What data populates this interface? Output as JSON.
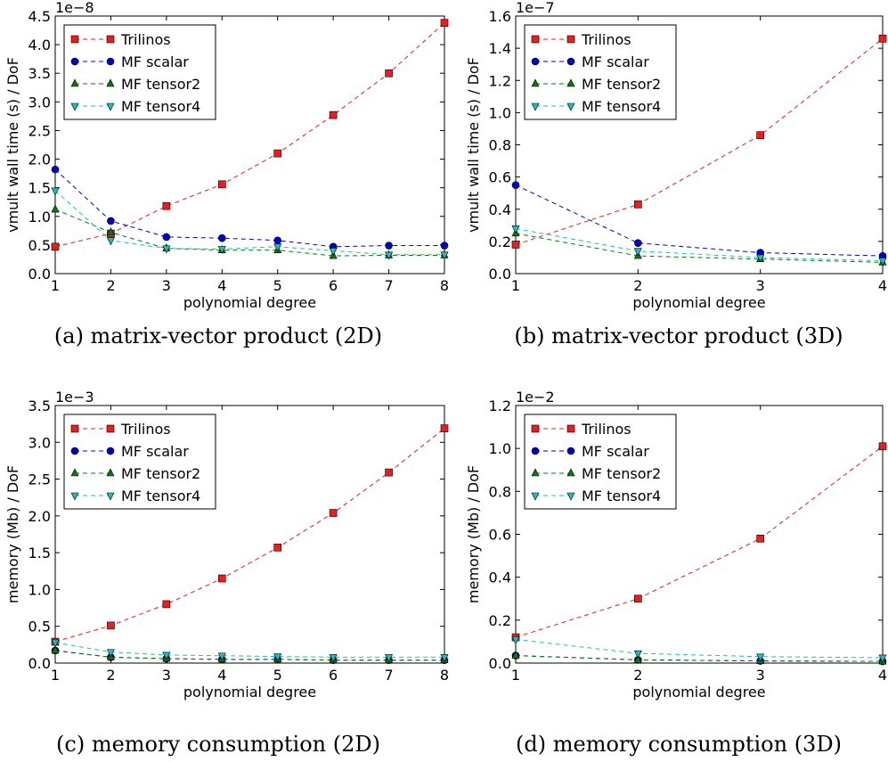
{
  "series_styles": [
    {
      "color": "#ee1c1c",
      "marker": "square"
    },
    {
      "color": "#0000cc",
      "marker": "circle"
    },
    {
      "color": "#0a7a0a",
      "marker": "triangle-up"
    },
    {
      "color": "#1bbfbf",
      "marker": "triangle-down"
    }
  ],
  "chart_data": [
    {
      "type": "line",
      "caption": "(a) matrix-vector product (2D)",
      "xlabel": "polynomial degree",
      "ylabel": "vmult wall time (s) / DoF",
      "offset_text": "1e−8",
      "xlim": [
        1,
        8
      ],
      "ylim": [
        0,
        4.5
      ],
      "xticks": [
        1,
        2,
        3,
        4,
        5,
        6,
        7,
        8
      ],
      "yticks": [
        0.0,
        0.5,
        1.0,
        1.5,
        2.0,
        2.5,
        3.0,
        3.5,
        4.0,
        4.5
      ],
      "legend": "top-left",
      "x": [
        1,
        2,
        3,
        4,
        5,
        6,
        7,
        8
      ],
      "series": [
        {
          "name": "Trilinos",
          "values": [
            0.47,
            0.7,
            1.18,
            1.56,
            2.1,
            2.77,
            3.5,
            4.38
          ]
        },
        {
          "name": "MF scalar",
          "values": [
            1.82,
            0.92,
            0.64,
            0.62,
            0.58,
            0.47,
            0.49,
            0.49
          ]
        },
        {
          "name": "MF tensor2",
          "values": [
            1.12,
            0.72,
            0.44,
            0.41,
            0.41,
            0.31,
            0.32,
            0.32
          ]
        },
        {
          "name": "MF tensor4",
          "values": [
            1.45,
            0.58,
            0.44,
            0.43,
            0.47,
            0.4,
            0.33,
            0.33
          ]
        }
      ]
    },
    {
      "type": "line",
      "caption": "(b) matrix-vector product (3D)",
      "xlabel": "polynomial degree",
      "ylabel": "vmult wall time (s) / DoF",
      "offset_text": "1e−7",
      "xlim": [
        1,
        4
      ],
      "ylim": [
        0,
        1.6
      ],
      "xticks": [
        1,
        2,
        3,
        4
      ],
      "yticks": [
        0.0,
        0.2,
        0.4,
        0.6,
        0.8,
        1.0,
        1.2,
        1.4,
        1.6
      ],
      "legend": "top-left",
      "x": [
        1,
        2,
        3,
        4
      ],
      "series": [
        {
          "name": "Trilinos",
          "values": [
            0.18,
            0.43,
            0.86,
            1.46
          ]
        },
        {
          "name": "MF scalar",
          "values": [
            0.55,
            0.19,
            0.13,
            0.11
          ]
        },
        {
          "name": "MF tensor2",
          "values": [
            0.25,
            0.11,
            0.09,
            0.07
          ]
        },
        {
          "name": "MF tensor4",
          "values": [
            0.28,
            0.14,
            0.1,
            0.08
          ]
        }
      ]
    },
    {
      "type": "line",
      "caption": "(c) memory consumption (2D)",
      "xlabel": "polynomial degree",
      "ylabel": "memory (Mb) / DoF",
      "offset_text": "1e−3",
      "xlim": [
        1,
        8
      ],
      "ylim": [
        0,
        3.5
      ],
      "xticks": [
        1,
        2,
        3,
        4,
        5,
        6,
        7,
        8
      ],
      "yticks": [
        0.0,
        0.5,
        1.0,
        1.5,
        2.0,
        2.5,
        3.0,
        3.5
      ],
      "legend": "top-left",
      "x": [
        1,
        2,
        3,
        4,
        5,
        6,
        7,
        8
      ],
      "series": [
        {
          "name": "Trilinos",
          "values": [
            0.29,
            0.51,
            0.8,
            1.15,
            1.57,
            2.04,
            2.59,
            3.19
          ]
        },
        {
          "name": "MF scalar",
          "values": [
            0.17,
            0.08,
            0.06,
            0.05,
            0.05,
            0.04,
            0.04,
            0.04
          ]
        },
        {
          "name": "MF tensor2",
          "values": [
            0.17,
            0.08,
            0.06,
            0.05,
            0.05,
            0.04,
            0.04,
            0.04
          ]
        },
        {
          "name": "MF tensor4",
          "values": [
            0.28,
            0.15,
            0.11,
            0.1,
            0.09,
            0.08,
            0.08,
            0.08
          ]
        }
      ]
    },
    {
      "type": "line",
      "caption": "(d) memory consumption (3D)",
      "xlabel": "polynomial degree",
      "ylabel": "memory (Mb) / DoF",
      "offset_text": "1e−2",
      "xlim": [
        1,
        4
      ],
      "ylim": [
        0,
        1.2
      ],
      "xticks": [
        1,
        2,
        3,
        4
      ],
      "yticks": [
        0.0,
        0.2,
        0.4,
        0.6,
        0.8,
        1.0,
        1.2
      ],
      "legend": "top-left",
      "x": [
        1,
        2,
        3,
        4
      ],
      "series": [
        {
          "name": "Trilinos",
          "values": [
            0.12,
            0.3,
            0.58,
            1.01
          ]
        },
        {
          "name": "MF scalar",
          "values": [
            0.035,
            0.015,
            0.01,
            0.008
          ]
        },
        {
          "name": "MF tensor2",
          "values": [
            0.035,
            0.015,
            0.01,
            0.008
          ]
        },
        {
          "name": "MF tensor4",
          "values": [
            0.11,
            0.045,
            0.03,
            0.025
          ]
        }
      ]
    }
  ]
}
